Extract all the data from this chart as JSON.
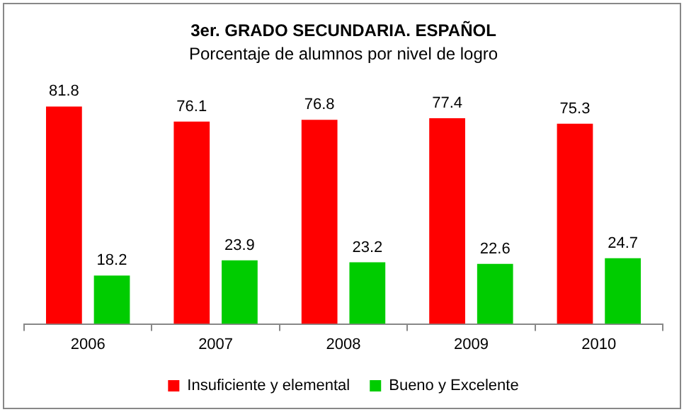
{
  "chart_data": {
    "type": "bar",
    "title": "3er. GRADO SECUNDARIA. ESPAÑOL",
    "subtitle": "Porcentaje de alumnos por nivel de logro",
    "categories": [
      "2006",
      "2007",
      "2008",
      "2009",
      "2010"
    ],
    "series": [
      {
        "name": "Insuficiente y elemental",
        "color": "#ff0000",
        "values": [
          81.8,
          76.1,
          76.8,
          77.4,
          75.3
        ]
      },
      {
        "name": "Bueno y Excelente",
        "color": "#00cc00",
        "values": [
          18.2,
          23.9,
          23.2,
          22.6,
          24.7
        ]
      }
    ],
    "data_labels": true,
    "grid": false,
    "legend": "bottom"
  }
}
